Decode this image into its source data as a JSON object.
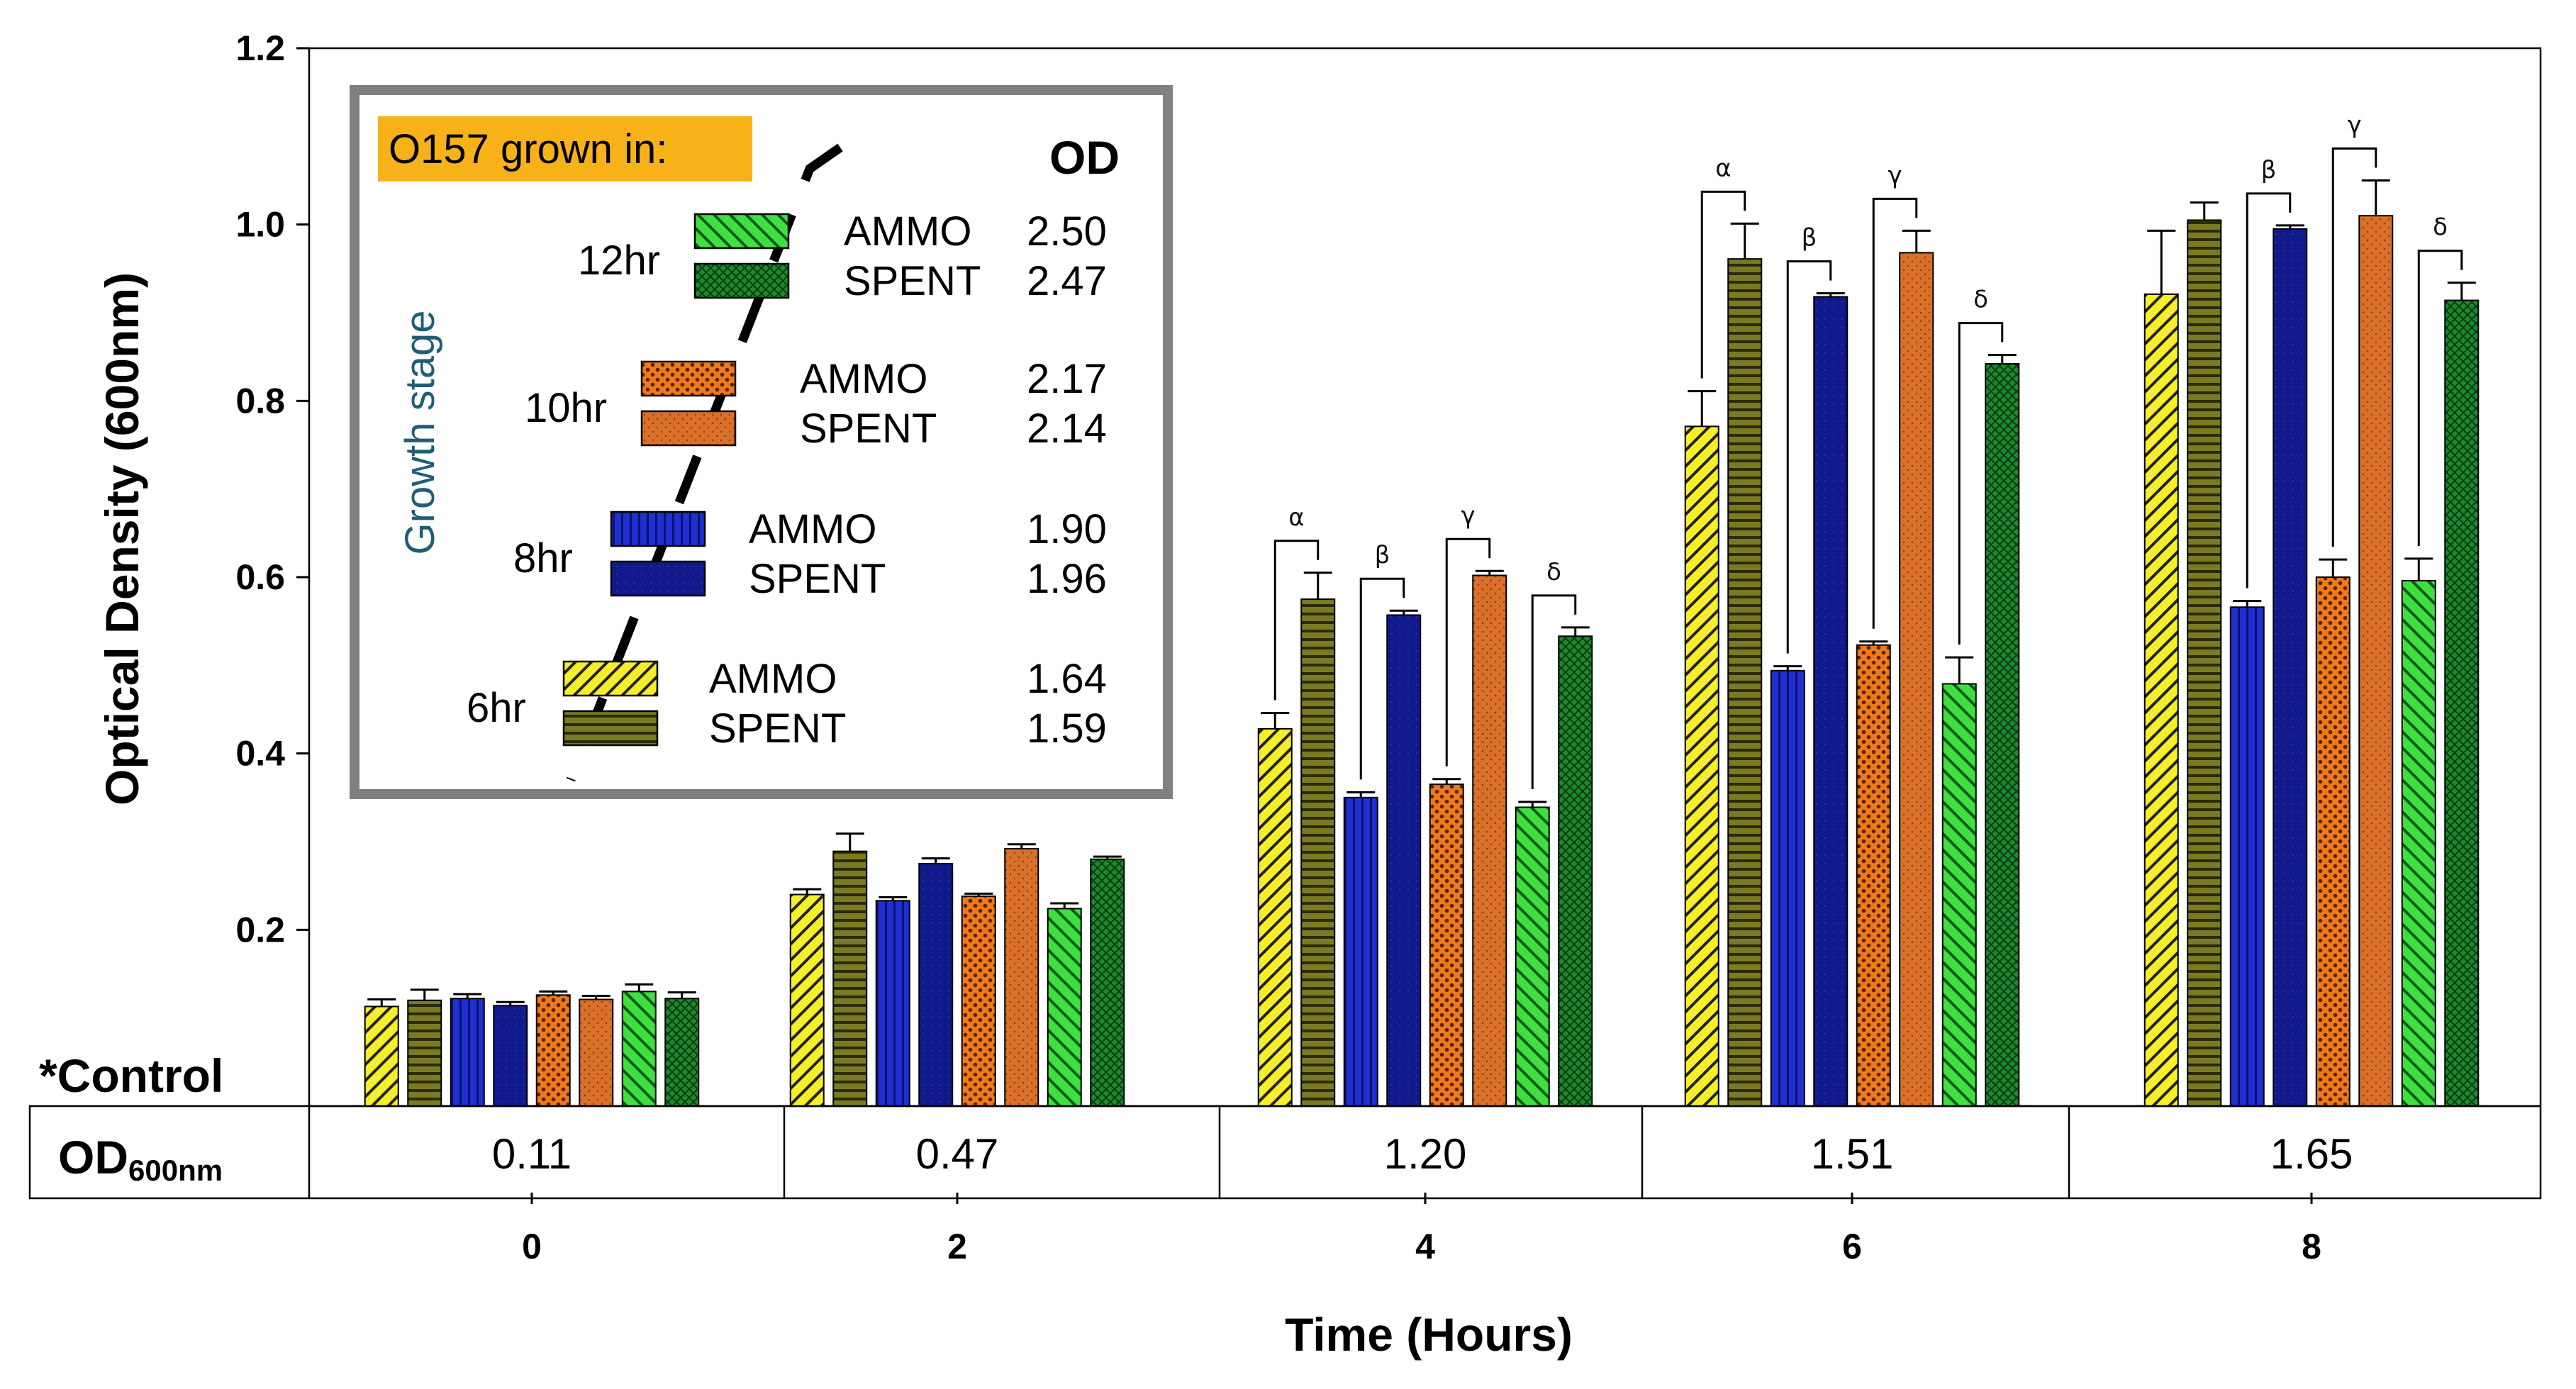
{
  "chart_data": {
    "type": "bar",
    "title": "",
    "xlabel": "Time (Hours)",
    "ylabel": "Optical Density (600nm)",
    "ylim": [
      0,
      1.2
    ],
    "y_ticks": [
      "0.2",
      "0.4",
      "0.6",
      "0.8",
      "1.0",
      "1.2"
    ],
    "categories": [
      "0",
      "2",
      "4",
      "6",
      "8"
    ],
    "series": [
      {
        "name": "6hr AMMO",
        "key": "s6a",
        "values": [
          0.113,
          0.24,
          0.428,
          0.771,
          0.921
        ],
        "errors": [
          0.008,
          0.006,
          0.018,
          0.04,
          0.072
        ]
      },
      {
        "name": "6hr SPENT",
        "key": "s6s",
        "values": [
          0.12,
          0.289,
          0.575,
          0.961,
          1.005
        ],
        "errors": [
          0.012,
          0.02,
          0.03,
          0.04,
          0.02
        ]
      },
      {
        "name": "8hr AMMO",
        "key": "s8a",
        "values": [
          0.122,
          0.233,
          0.35,
          0.494,
          0.566
        ],
        "errors": [
          0.005,
          0.004,
          0.006,
          0.005,
          0.007
        ]
      },
      {
        "name": "8hr SPENT",
        "key": "s8s",
        "values": [
          0.114,
          0.275,
          0.557,
          0.918,
          0.995
        ],
        "errors": [
          0.004,
          0.006,
          0.005,
          0.004,
          0.004
        ]
      },
      {
        "name": "10hr AMMO",
        "key": "s10a",
        "values": [
          0.126,
          0.238,
          0.365,
          0.523,
          0.6
        ],
        "errors": [
          0.004,
          0.003,
          0.006,
          0.004,
          0.02
        ]
      },
      {
        "name": "10hr SPENT",
        "key": "s10s",
        "values": [
          0.121,
          0.292,
          0.602,
          0.968,
          1.01
        ],
        "errors": [
          0.004,
          0.005,
          0.005,
          0.025,
          0.04
        ]
      },
      {
        "name": "12hr AMMO",
        "key": "s12a",
        "values": [
          0.13,
          0.224,
          0.339,
          0.479,
          0.596
        ],
        "errors": [
          0.008,
          0.006,
          0.006,
          0.03,
          0.025
        ]
      },
      {
        "name": "12hr SPENT",
        "key": "s12s",
        "values": [
          0.122,
          0.28,
          0.533,
          0.842,
          0.914
        ],
        "errors": [
          0.007,
          0.003,
          0.01,
          0.01,
          0.02
        ]
      }
    ],
    "significance": [
      {
        "category": "4",
        "pairs": [
          {
            "symbol": "α",
            "from": 0,
            "to": 1
          },
          {
            "symbol": "β",
            "from": 2,
            "to": 3
          },
          {
            "symbol": "γ",
            "from": 4,
            "to": 5
          },
          {
            "symbol": "δ",
            "from": 6,
            "to": 7
          }
        ]
      },
      {
        "category": "6",
        "pairs": [
          {
            "symbol": "α",
            "from": 0,
            "to": 1
          },
          {
            "symbol": "β",
            "from": 2,
            "to": 3
          },
          {
            "symbol": "γ",
            "from": 4,
            "to": 5
          },
          {
            "symbol": "δ",
            "from": 6,
            "to": 7
          }
        ]
      },
      {
        "category": "8",
        "pairs": [
          {
            "symbol": "β",
            "from": 2,
            "to": 3
          },
          {
            "symbol": "γ",
            "from": 4,
            "to": 5
          },
          {
            "symbol": "δ",
            "from": 6,
            "to": 7
          }
        ]
      }
    ],
    "table": {
      "row_label_main": "OD",
      "row_label_sub": "600nm",
      "values": [
        "0.11",
        "0.47",
        "1.20",
        "1.51",
        "1.65"
      ],
      "note": "*Control"
    },
    "legend": {
      "placement": "top-left",
      "title": "O157 grown in:",
      "od_header": "OD",
      "stage_label": "Growth stage",
      "groups": [
        {
          "stage": "12hr",
          "entries": [
            {
              "key": "s12a",
              "label": "AMMO",
              "od": "2.50"
            },
            {
              "key": "s12s",
              "label": "SPENT",
              "od": "2.47"
            }
          ]
        },
        {
          "stage": "10hr",
          "entries": [
            {
              "key": "s10a",
              "label": "AMMO",
              "od": "2.17"
            },
            {
              "key": "s10s",
              "label": "SPENT",
              "od": "2.14"
            }
          ]
        },
        {
          "stage": "8hr",
          "entries": [
            {
              "key": "s8a",
              "label": "AMMO",
              "od": "1.90"
            },
            {
              "key": "s8s",
              "label": "SPENT",
              "od": "1.96"
            }
          ]
        },
        {
          "stage": "6hr",
          "entries": [
            {
              "key": "s6a",
              "label": "AMMO",
              "od": "1.64"
            },
            {
              "key": "s6s",
              "label": "SPENT",
              "od": "1.59"
            }
          ]
        }
      ]
    }
  },
  "colors": {
    "s6a": "#f5ee2a",
    "s6s": "#7a7a22",
    "s8a": "#1f2fd0",
    "s8s": "#101a8a",
    "s10a": "#ee7a1a",
    "s10s": "#d9702a",
    "s12a": "#3ee040",
    "s12s": "#1c8a2c",
    "legend_title_bg": "#f7b21a",
    "stage_label": "#1f5e74",
    "legend_border": "#808080"
  }
}
